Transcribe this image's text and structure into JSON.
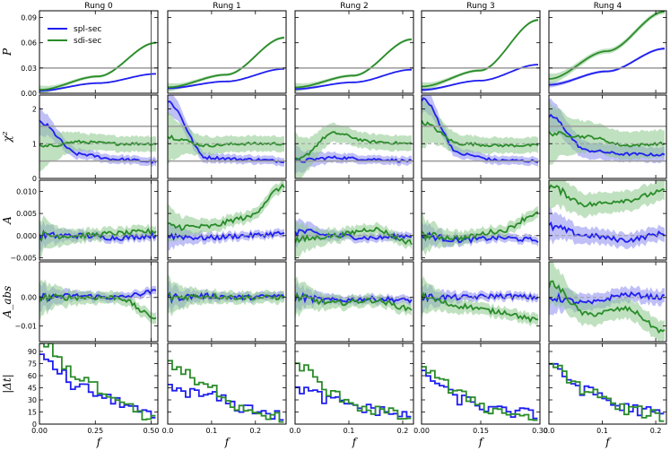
{
  "chart_data": {
    "type": "line",
    "layout": "5 rows x 5 columns grid of panels",
    "columns": [
      {
        "title": "Rung 0",
        "xlim": [
          0,
          0.53
        ],
        "xticks": [
          0.0,
          0.25,
          0.5
        ],
        "xtick_labels": [
          "0.00",
          "0.25",
          "0.50"
        ],
        "vline": 0.5
      },
      {
        "title": "Rung 1",
        "xlim": [
          0,
          0.27
        ],
        "xticks": [
          0.0,
          0.1,
          0.2
        ],
        "xtick_labels": [
          "0.0",
          "0.1",
          "0.2"
        ],
        "vline": null
      },
      {
        "title": "Rung 2",
        "xlim": [
          0,
          0.22
        ],
        "xticks": [
          0.0,
          0.1,
          0.2
        ],
        "xtick_labels": [
          "0.0",
          "0.1",
          "0.2"
        ],
        "vline": null
      },
      {
        "title": "Rung 3",
        "xlim": [
          0,
          0.3
        ],
        "xticks": [
          0.0,
          0.15,
          0.3
        ],
        "xtick_labels": [
          "0.00",
          "0.15",
          "0.30"
        ],
        "vline": null
      },
      {
        "title": "Rung 4",
        "xlim": [
          0,
          0.22
        ],
        "xticks": [
          0.0,
          0.1,
          0.2
        ],
        "xtick_labels": [
          "0.0",
          "0.1",
          "0.2"
        ],
        "vline": null
      }
    ],
    "rows": [
      {
        "ylabel": "P",
        "ylim": [
          0,
          0.098
        ],
        "yticks": [
          0.0,
          0.03,
          0.06,
          0.09
        ],
        "ytick_labels": [
          "0.00",
          "0.03",
          "0.06",
          "0.09"
        ],
        "hlines": [
          0.03
        ]
      },
      {
        "ylabel": "χ²",
        "ylim": [
          0,
          2.4
        ],
        "yticks": [
          0,
          1,
          2
        ],
        "ytick_labels": [
          "0",
          "1",
          "2"
        ],
        "hlines": [
          0.5,
          1.5
        ]
      },
      {
        "ylabel": "A",
        "ylim": [
          -0.0055,
          0.0125
        ],
        "yticks": [
          -0.005,
          0.0,
          0.005,
          0.01
        ],
        "ytick_labels": [
          "−0.005",
          "0.000",
          "0.005",
          "0.010"
        ],
        "hlines": []
      },
      {
        "ylabel": "A_abs",
        "ylim": [
          -0.0155,
          0.0125
        ],
        "yticks": [
          -0.01,
          0.0
        ],
        "ytick_labels": [
          "−0.01",
          "0.00"
        ],
        "hlines": []
      },
      {
        "ylabel": "|Δt|",
        "ylim": [
          0,
          100
        ],
        "yticks": [
          0,
          15,
          30,
          45,
          60,
          75,
          90
        ],
        "ytick_labels": [
          "0",
          "15",
          "30",
          "45",
          "60",
          "75",
          "90"
        ],
        "hlines": []
      }
    ],
    "xlabel": "f",
    "legend": {
      "location": "top-left of first panel",
      "entries": [
        "spl-sec",
        "sdi-sec"
      ]
    },
    "series": [
      {
        "name": "spl-sec",
        "color": "#1f1ff0",
        "band_color": "#8c8cf0"
      },
      {
        "name": "sdi-sec",
        "color": "#2a8c2a",
        "band_color": "#8cc98c"
      }
    ],
    "panels": {
      "P": {
        "spl-sec": [
          [
            0.003,
            0.012,
            0.023
          ],
          [
            0.006,
            0.014,
            0.029
          ],
          [
            0.005,
            0.013,
            0.028
          ],
          [
            0.004,
            0.015,
            0.034
          ],
          [
            0.01,
            0.026,
            0.053
          ]
        ],
        "sdi-sec": [
          [
            0.004,
            0.02,
            0.06
          ],
          [
            0.007,
            0.022,
            0.066
          ],
          [
            0.007,
            0.021,
            0.064
          ],
          [
            0.008,
            0.027,
            0.087
          ],
          [
            0.017,
            0.05,
            0.097
          ]
        ]
      },
      "chi2": {
        "spl-sec": [
          [
            1.6,
            0.7,
            0.55,
            0.48
          ],
          [
            2.2,
            0.6,
            0.55,
            0.5
          ],
          [
            0.5,
            0.6,
            0.55,
            0.5
          ],
          [
            2.3,
            0.7,
            0.52,
            0.5
          ],
          [
            1.8,
            0.8,
            0.7,
            0.68
          ]
        ],
        "sdi-sec": [
          [
            0.9,
            1.05,
            1.0,
            1.0
          ],
          [
            1.2,
            0.95,
            1.0,
            1.0
          ],
          [
            0.5,
            1.3,
            1.05,
            1.0
          ],
          [
            1.6,
            1.0,
            0.95,
            0.95
          ],
          [
            1.3,
            1.2,
            0.95,
            1.0
          ]
        ]
      },
      "A": {
        "spl-sec": [
          [
            0.0,
            0.0,
            -0.0005,
            0.0
          ],
          [
            0.0,
            -0.0005,
            0.0,
            0.0005
          ],
          [
            0.001,
            0.0,
            -0.0005,
            0.0
          ],
          [
            0.0,
            -0.001,
            -0.0005,
            -0.001
          ],
          [
            0.002,
            0.0,
            -0.001,
            0.0005
          ]
        ],
        "sdi-sec": [
          [
            0.0,
            0.0,
            0.0005,
            0.001
          ],
          [
            0.002,
            0.002,
            0.004,
            0.011
          ],
          [
            -0.001,
            0.0,
            0.0015,
            -0.0015
          ],
          [
            0.0,
            -0.0005,
            0.001,
            0.005
          ],
          [
            0.011,
            0.007,
            0.008,
            0.01
          ]
        ]
      },
      "A_abs": {
        "spl-sec": [
          [
            0.0,
            0.0005,
            0.0,
            0.002
          ],
          [
            0.0,
            0.0005,
            0.0,
            0.0005
          ],
          [
            0.0,
            -0.001,
            -0.0005,
            -0.001
          ],
          [
            0.0,
            0.0,
            0.0005,
            0.0
          ],
          [
            0.0,
            -0.002,
            0.001,
            0.0
          ]
        ],
        "sdi-sec": [
          [
            0.0,
            0.0,
            0.0,
            -0.007
          ],
          [
            0.0,
            0.0005,
            0.0,
            0.0
          ],
          [
            0.0,
            -0.002,
            -0.001,
            -0.004
          ],
          [
            0.0,
            -0.003,
            -0.005,
            -0.008
          ],
          [
            0.005,
            -0.006,
            -0.004,
            -0.012
          ]
        ]
      },
      "dt": {
        "spl-sec": [
          [
            82,
            45,
            28,
            8
          ],
          [
            44,
            35,
            20,
            10
          ],
          [
            44,
            28,
            18,
            10
          ],
          [
            60,
            30,
            16,
            12
          ],
          [
            69,
            40,
            20,
            12
          ]
        ],
        "sdi-sec": [
          [
            100,
            58,
            25,
            5
          ],
          [
            73,
            45,
            20,
            7
          ],
          [
            73,
            35,
            18,
            8
          ],
          [
            70,
            35,
            16,
            8
          ],
          [
            72,
            40,
            18,
            10
          ]
        ]
      }
    }
  }
}
